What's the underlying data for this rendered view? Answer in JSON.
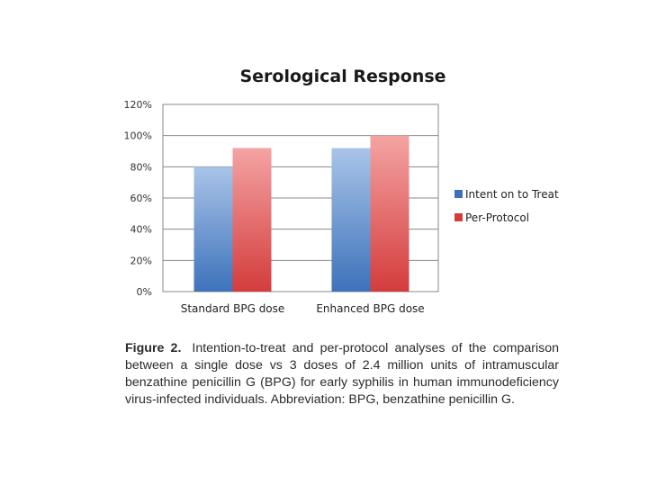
{
  "chart_data": {
    "type": "bar",
    "title": "Serological Response",
    "xlabel": "",
    "ylabel": "",
    "categories": [
      "Standard BPG dose",
      "Enhanced BPG dose"
    ],
    "series": [
      {
        "name": "Intent on to Treat",
        "values": [
          80,
          92
        ]
      },
      {
        "name": "Per-Protocol",
        "values": [
          92,
          100
        ]
      }
    ],
    "ylim": [
      0,
      120
    ],
    "yticks": [
      0,
      20,
      40,
      60,
      80,
      100,
      120
    ],
    "ytick_labels": [
      "0%",
      "20%",
      "40%",
      "60%",
      "80%",
      "100%",
      "120%"
    ],
    "grid": true,
    "legend_position": "right",
    "colors": {
      "series_0_light": "#a9c4e8",
      "series_0_dark": "#3d72bb",
      "series_1_light": "#f4a3a3",
      "series_1_dark": "#d43c3c",
      "axis": "#8a8a8a",
      "grid": "#8a8a8a"
    }
  },
  "caption": {
    "label": "Figure 2.",
    "text": "Intention-to-treat and per-protocol analyses of the comparison between a single dose vs 3 doses of 2.4 million units of intramuscular benzathine penicillin G (BPG) for early syphilis in human immunodeficiency virus-infected individuals. Abbreviation: BPG, benzathine penicillin G."
  }
}
